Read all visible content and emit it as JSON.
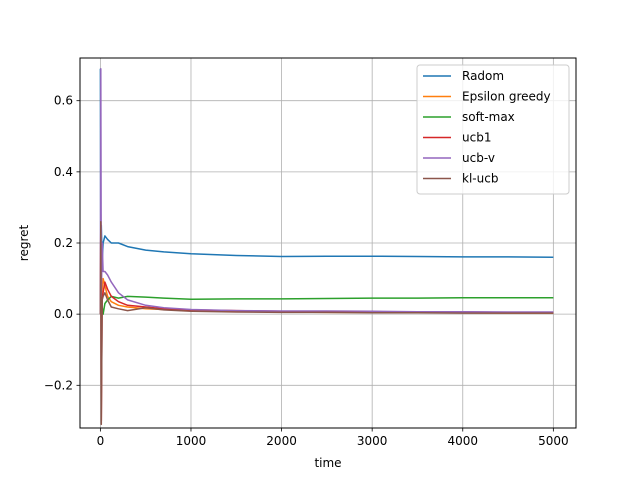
{
  "chart_data": {
    "type": "line",
    "xlabel": "time",
    "ylabel": "regret",
    "xlim": [
      -225,
      5250
    ],
    "ylim": [
      -0.32,
      0.72
    ],
    "xticks": [
      0,
      1000,
      2000,
      3000,
      4000,
      5000
    ],
    "xtick_labels": [
      "0",
      "1000",
      "2000",
      "3000",
      "4000",
      "5000"
    ],
    "yticks": [
      -0.2,
      0.0,
      0.2,
      0.4,
      0.6
    ],
    "ytick_labels": [
      "−0.2",
      "0.0",
      "0.2",
      "0.4",
      "0.6"
    ],
    "grid": true,
    "legend_position": "top-right",
    "series": [
      {
        "name": "Radom",
        "color": "#1f77b4",
        "x": [
          0,
          5,
          10,
          20,
          30,
          50,
          80,
          120,
          200,
          300,
          500,
          700,
          1000,
          1500,
          2000,
          2500,
          3000,
          3500,
          4000,
          4500,
          5000
        ],
        "y": [
          0.69,
          0.0,
          0.25,
          0.15,
          0.2,
          0.22,
          0.21,
          0.2,
          0.2,
          0.19,
          0.18,
          0.175,
          0.17,
          0.165,
          0.162,
          0.163,
          0.163,
          0.162,
          0.161,
          0.161,
          0.16
        ]
      },
      {
        "name": "Epsilon greedy",
        "color": "#ff7f0e",
        "x": [
          0,
          5,
          10,
          20,
          30,
          50,
          80,
          120,
          200,
          300,
          500,
          700,
          1000,
          1500,
          2000,
          2500,
          3000,
          3500,
          4000,
          4500,
          5000
        ],
        "y": [
          0.0,
          0.28,
          0.0,
          0.07,
          0.1,
          0.08,
          0.05,
          0.035,
          0.025,
          0.02,
          0.015,
          0.013,
          0.01,
          0.008,
          0.006,
          0.005,
          0.005,
          0.004,
          0.004,
          0.003,
          0.003
        ]
      },
      {
        "name": "soft-max",
        "color": "#2ca02c",
        "x": [
          0,
          5,
          10,
          20,
          30,
          50,
          80,
          120,
          200,
          300,
          500,
          700,
          1000,
          1500,
          2000,
          2500,
          3000,
          3500,
          4000,
          4500,
          5000
        ],
        "y": [
          0.0,
          0.1,
          -0.03,
          0.02,
          0.0,
          0.03,
          0.04,
          0.05,
          0.045,
          0.05,
          0.048,
          0.045,
          0.042,
          0.043,
          0.043,
          0.044,
          0.045,
          0.045,
          0.046,
          0.046,
          0.046
        ]
      },
      {
        "name": "ucb1",
        "color": "#d62728",
        "x": [
          0,
          5,
          10,
          20,
          30,
          50,
          80,
          120,
          200,
          300,
          500,
          700,
          1000,
          1500,
          2000,
          2500,
          3000,
          3500,
          4000,
          4500,
          5000
        ],
        "y": [
          0.0,
          0.26,
          -0.3,
          0.05,
          0.06,
          0.09,
          0.07,
          0.05,
          0.035,
          0.025,
          0.02,
          0.015,
          0.012,
          0.01,
          0.008,
          0.008,
          0.007,
          0.006,
          0.006,
          0.005,
          0.005
        ]
      },
      {
        "name": "ucb-v",
        "color": "#9467bd",
        "x": [
          0,
          5,
          10,
          20,
          30,
          50,
          80,
          120,
          200,
          300,
          500,
          700,
          1000,
          1500,
          2000,
          2500,
          3000,
          3500,
          4000,
          4500,
          5000
        ],
        "y": [
          0.0,
          0.69,
          0.05,
          0.2,
          0.12,
          0.12,
          0.11,
          0.09,
          0.06,
          0.04,
          0.025,
          0.018,
          0.013,
          0.01,
          0.009,
          0.009,
          0.008,
          0.007,
          0.007,
          0.006,
          0.006
        ]
      },
      {
        "name": "kl-ucb",
        "color": "#8c564b",
        "x": [
          0,
          5,
          10,
          20,
          30,
          50,
          80,
          120,
          200,
          300,
          500,
          700,
          1000,
          1500,
          2000,
          2500,
          3000,
          3500,
          4000,
          4500,
          5000
        ],
        "y": [
          0.0,
          0.26,
          -0.31,
          0.04,
          0.05,
          0.06,
          0.04,
          0.02,
          0.015,
          0.01,
          0.018,
          0.012,
          0.008,
          0.006,
          0.005,
          0.005,
          0.004,
          0.004,
          0.003,
          0.003,
          0.003
        ]
      }
    ]
  }
}
